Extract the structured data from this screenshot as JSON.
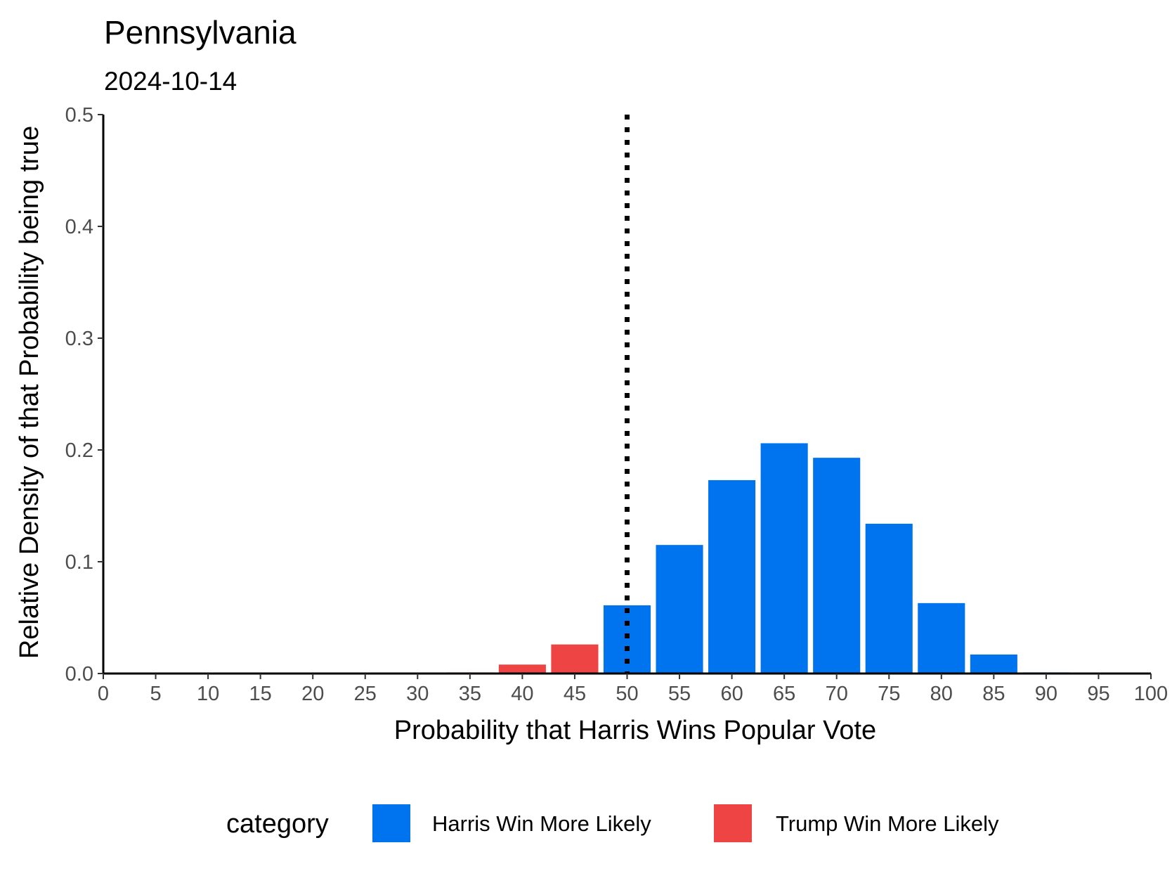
{
  "chart_data": {
    "type": "bar",
    "title": "Pennsylvania",
    "subtitle": "2024-10-14",
    "xlabel": "Probability that Harris Wins Popular Vote",
    "ylabel": "Relative Density of that Probability being true",
    "xlim": [
      0,
      100
    ],
    "ylim": [
      0,
      0.5
    ],
    "x_ticks": [
      0,
      5,
      10,
      15,
      20,
      25,
      30,
      35,
      40,
      45,
      50,
      55,
      60,
      65,
      70,
      75,
      80,
      85,
      90,
      95,
      100
    ],
    "y_ticks": [
      "0.0",
      "0.1",
      "0.2",
      "0.3",
      "0.4",
      "0.5"
    ],
    "reference_line": {
      "x": 50,
      "style": "dotted"
    },
    "bars": [
      {
        "x": 35,
        "value": 0.001,
        "category": "Trump Win More Likely"
      },
      {
        "x": 40,
        "value": 0.008,
        "category": "Trump Win More Likely"
      },
      {
        "x": 45,
        "value": 0.026,
        "category": "Trump Win More Likely"
      },
      {
        "x": 50,
        "value": 0.061,
        "category": "Harris Win More Likely"
      },
      {
        "x": 55,
        "value": 0.115,
        "category": "Harris Win More Likely"
      },
      {
        "x": 60,
        "value": 0.173,
        "category": "Harris Win More Likely"
      },
      {
        "x": 65,
        "value": 0.206,
        "category": "Harris Win More Likely"
      },
      {
        "x": 70,
        "value": 0.193,
        "category": "Harris Win More Likely"
      },
      {
        "x": 75,
        "value": 0.134,
        "category": "Harris Win More Likely"
      },
      {
        "x": 80,
        "value": 0.063,
        "category": "Harris Win More Likely"
      },
      {
        "x": 85,
        "value": 0.017,
        "category": "Harris Win More Likely"
      },
      {
        "x": 90,
        "value": 0.001,
        "category": "Harris Win More Likely"
      }
    ],
    "legend": {
      "title": "category",
      "position": "bottom",
      "items": [
        {
          "label": "Harris Win More Likely",
          "color": "#0073ee"
        },
        {
          "label": "Trump Win More Likely",
          "color": "#ee4444"
        }
      ]
    },
    "grid": false
  }
}
